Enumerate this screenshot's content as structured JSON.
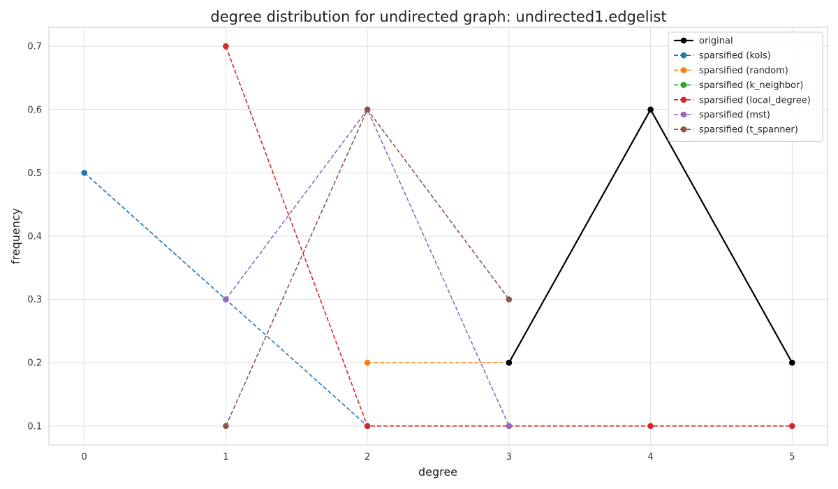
{
  "chart_data": {
    "type": "line",
    "title": "degree distribution for undirected graph: undirected1.edgelist",
    "xlabel": "degree",
    "ylabel": "frequency",
    "xlim": [
      -0.25,
      5.25
    ],
    "ylim": [
      0.07,
      0.73
    ],
    "xticks": [
      0,
      1,
      2,
      3,
      4,
      5
    ],
    "xtick_labels": [
      "0",
      "1",
      "2",
      "3",
      "4",
      "5"
    ],
    "yticks": [
      0.1,
      0.2,
      0.3,
      0.4,
      0.5,
      0.6,
      0.7
    ],
    "ytick_labels": [
      "0.1",
      "0.2",
      "0.3",
      "0.4",
      "0.5",
      "0.6",
      "0.7"
    ],
    "grid": true,
    "legend_position": "top-right",
    "series": [
      {
        "name": "original",
        "color": "#000000",
        "style": "solid",
        "x": [
          3,
          4,
          5
        ],
        "y": [
          0.2,
          0.6,
          0.2
        ]
      },
      {
        "name": "sparsified (kols)",
        "color": "#1f77b4",
        "style": "dashed",
        "x": [
          0,
          1,
          2
        ],
        "y": [
          0.5,
          0.3,
          0.1
        ]
      },
      {
        "name": "sparsified (random)",
        "color": "#ff7f0e",
        "style": "dashed",
        "x": [
          2,
          3,
          4
        ],
        "y": [
          0.2,
          0.2,
          0.6
        ]
      },
      {
        "name": "sparsified (k_neighbor)",
        "color": "#2ca02c",
        "style": "dashed",
        "x": [],
        "y": []
      },
      {
        "name": "sparsified (local_degree)",
        "color": "#d62728",
        "style": "dashed",
        "x": [
          1,
          2,
          3,
          4,
          5
        ],
        "y": [
          0.7,
          0.1,
          0.1,
          0.1,
          0.1
        ]
      },
      {
        "name": "sparsified (mst)",
        "color": "#9467bd",
        "style": "dashed",
        "x": [
          1,
          2,
          3
        ],
        "y": [
          0.3,
          0.6,
          0.1
        ]
      },
      {
        "name": "sparsified (t_spanner)",
        "color": "#8c564b",
        "style": "dashed",
        "x": [
          1,
          2,
          3
        ],
        "y": [
          0.1,
          0.6,
          0.3
        ]
      }
    ]
  }
}
